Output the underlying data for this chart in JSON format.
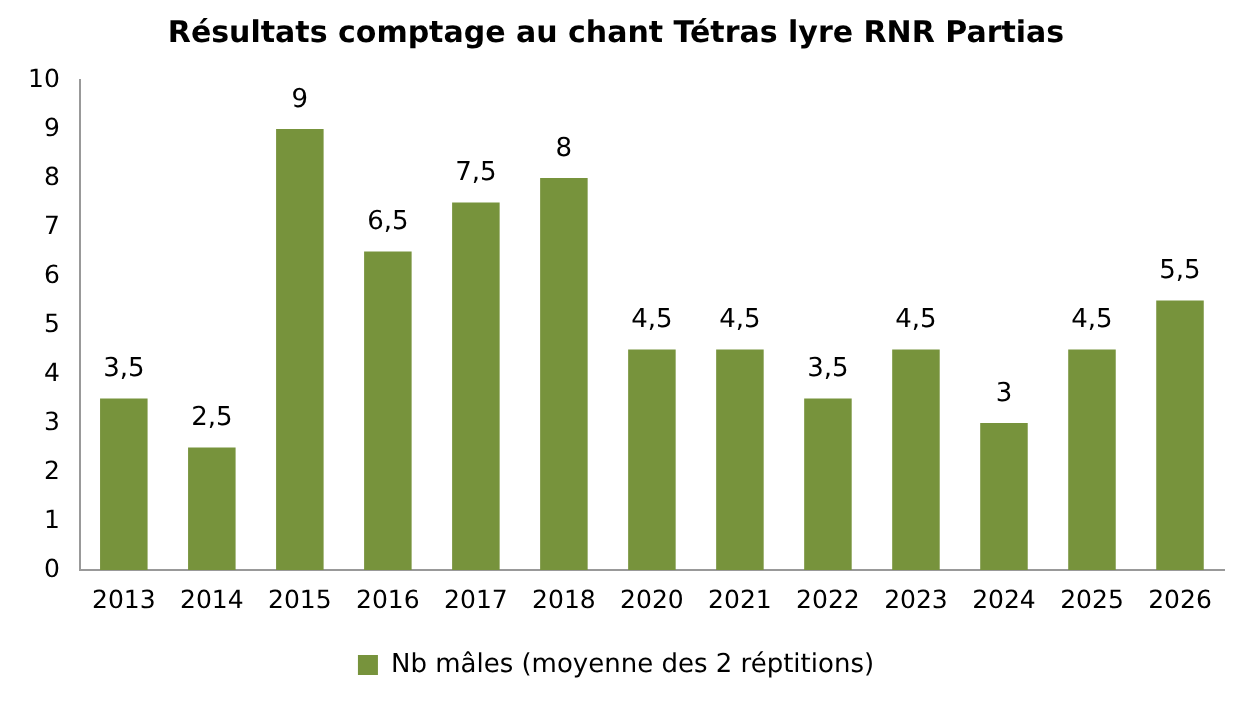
{
  "chart_data": {
    "type": "bar",
    "title": "Résultats comptage au chant Tétras lyre RNR Partias",
    "categories": [
      "2013",
      "2014",
      "2015",
      "2016",
      "2017",
      "2018",
      "2020",
      "2021",
      "2022",
      "2023",
      "2024",
      "2025",
      "2026"
    ],
    "series": [
      {
        "name": "Nb mâles (moyenne des 2 réptitions)",
        "color": "#77933c",
        "values": [
          3.5,
          2.5,
          9,
          6.5,
          7.5,
          8,
          4.5,
          4.5,
          3.5,
          4.5,
          3,
          4.5,
          5.5
        ],
        "value_labels": [
          "3,5",
          "2,5",
          "9",
          "6,5",
          "7,5",
          "8",
          "4,5",
          "4,5",
          "3,5",
          "4,5",
          "3",
          "4,5",
          "5,5"
        ]
      }
    ],
    "ylim": [
      0,
      10
    ],
    "yticks": [
      0,
      1,
      2,
      3,
      4,
      5,
      6,
      7,
      8,
      9,
      10
    ],
    "grid": false,
    "legend": "bottom"
  }
}
